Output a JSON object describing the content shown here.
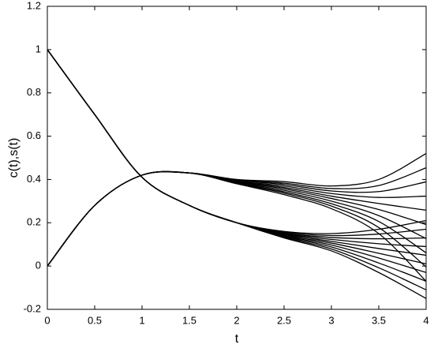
{
  "chart_data": {
    "type": "line",
    "xlabel": "t",
    "ylabel": "c(t),s(t)",
    "x": [
      0,
      0.5,
      1,
      1.5,
      2,
      2.5,
      3,
      3.5,
      4
    ],
    "xlim": [
      0,
      4
    ],
    "xticks": [
      0,
      0.5,
      1,
      1.5,
      2,
      2.5,
      3,
      3.5,
      4
    ],
    "ylim": [
      -0.2,
      1.2
    ],
    "yticks": [
      -0.2,
      0,
      0.2,
      0.4,
      0.6,
      0.8,
      1,
      1.2
    ],
    "grid": false,
    "series": [
      {
        "color": "#000000",
        "values": [
          1,
          0.7,
          0.41,
          0.28,
          0.2,
          0.16,
          0.15,
          0.17,
          0.21
        ]
      },
      {
        "color": "#000000",
        "values": [
          1,
          0.7,
          0.41,
          0.28,
          0.2,
          0.157,
          0.141,
          0.148,
          0.17
        ]
      },
      {
        "color": "#000000",
        "values": [
          1,
          0.7,
          0.41,
          0.28,
          0.2,
          0.153,
          0.132,
          0.126,
          0.13
        ]
      },
      {
        "color": "#000000",
        "values": [
          1,
          0.7,
          0.41,
          0.28,
          0.2,
          0.15,
          0.123,
          0.103,
          0.09
        ]
      },
      {
        "color": "#000000",
        "values": [
          1,
          0.7,
          0.41,
          0.28,
          0.2,
          0.147,
          0.114,
          0.081,
          0.05
        ]
      },
      {
        "color": "#000000",
        "values": [
          1,
          0.7,
          0.41,
          0.28,
          0.2,
          0.143,
          0.106,
          0.059,
          0.01
        ]
      },
      {
        "color": "#000000",
        "values": [
          1,
          0.7,
          0.41,
          0.28,
          0.2,
          0.14,
          0.097,
          0.037,
          -0.03
        ]
      },
      {
        "color": "#000000",
        "values": [
          1,
          0.7,
          0.41,
          0.28,
          0.2,
          0.137,
          0.088,
          0.014,
          -0.07
        ]
      },
      {
        "color": "#000000",
        "values": [
          1,
          0.7,
          0.41,
          0.28,
          0.2,
          0.133,
          0.079,
          -0.008,
          -0.11
        ]
      },
      {
        "color": "#000000",
        "values": [
          1,
          0.7,
          0.41,
          0.28,
          0.2,
          0.13,
          0.07,
          -0.03,
          -0.15
        ]
      },
      {
        "color": "#000000",
        "values": [
          0,
          0.28,
          0.42,
          0.43,
          0.4,
          0.39,
          0.37,
          0.4,
          0.52
        ]
      },
      {
        "color": "#000000",
        "values": [
          0,
          0.28,
          0.42,
          0.43,
          0.398,
          0.383,
          0.358,
          0.372,
          0.454
        ]
      },
      {
        "color": "#000000",
        "values": [
          0,
          0.28,
          0.42,
          0.43,
          0.396,
          0.377,
          0.347,
          0.344,
          0.389
        ]
      },
      {
        "color": "#000000",
        "values": [
          0,
          0.28,
          0.42,
          0.43,
          0.393,
          0.37,
          0.335,
          0.317,
          0.323
        ]
      },
      {
        "color": "#000000",
        "values": [
          0,
          0.28,
          0.42,
          0.43,
          0.391,
          0.363,
          0.323,
          0.289,
          0.258
        ]
      },
      {
        "color": "#000000",
        "values": [
          0,
          0.28,
          0.42,
          0.43,
          0.389,
          0.357,
          0.312,
          0.261,
          0.192
        ]
      },
      {
        "color": "#000000",
        "values": [
          0,
          0.28,
          0.42,
          0.43,
          0.387,
          0.35,
          0.3,
          0.233,
          0.127
        ]
      },
      {
        "color": "#000000",
        "values": [
          0,
          0.28,
          0.42,
          0.43,
          0.384,
          0.343,
          0.288,
          0.206,
          0.061
        ]
      },
      {
        "color": "#000000",
        "values": [
          0,
          0.28,
          0.42,
          0.43,
          0.382,
          0.337,
          0.277,
          0.178,
          -0.004
        ]
      },
      {
        "color": "#000000",
        "values": [
          0,
          0.28,
          0.42,
          0.43,
          0.38,
          0.33,
          0.265,
          0.15,
          -0.07
        ]
      }
    ]
  }
}
